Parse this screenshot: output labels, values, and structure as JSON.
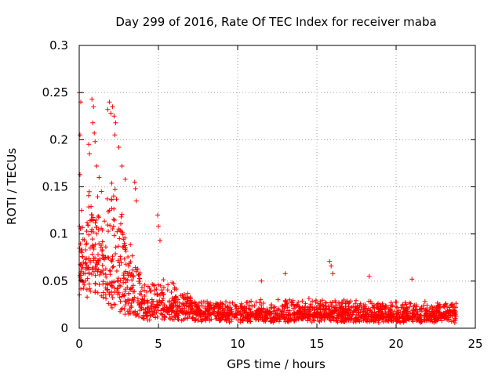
{
  "chart_data": {
    "type": "scatter",
    "title": "Day 299 of 2016, Rate Of TEC Index for receiver maba",
    "xlabel": "GPS time / hours",
    "ylabel": "ROTI / TECUs",
    "xlim": [
      0,
      25
    ],
    "ylim": [
      0,
      0.3
    ],
    "xticks": [
      0,
      5,
      10,
      15,
      20,
      25
    ],
    "yticks": [
      0,
      0.05,
      0.1,
      0.15,
      0.2,
      0.25,
      0.3
    ],
    "grid": true,
    "marker": "plus",
    "marker_color": "#ff0000",
    "series": [
      {
        "name": "ROTI",
        "envelope": [
          {
            "x": 0.0,
            "base": 0.08,
            "spread": 0.05
          },
          {
            "x": 0.5,
            "base": 0.09,
            "spread": 0.07
          },
          {
            "x": 1.0,
            "base": 0.08,
            "spread": 0.08
          },
          {
            "x": 1.5,
            "base": 0.06,
            "spread": 0.08
          },
          {
            "x": 2.0,
            "base": 0.05,
            "spread": 0.12
          },
          {
            "x": 2.5,
            "base": 0.04,
            "spread": 0.12
          },
          {
            "x": 3.0,
            "base": 0.03,
            "spread": 0.07
          },
          {
            "x": 3.5,
            "base": 0.025,
            "spread": 0.06
          },
          {
            "x": 4.0,
            "base": 0.02,
            "spread": 0.03
          },
          {
            "x": 5.0,
            "base": 0.02,
            "spread": 0.035
          },
          {
            "x": 6.0,
            "base": 0.02,
            "spread": 0.03
          },
          {
            "x": 7.0,
            "base": 0.018,
            "spread": 0.018
          },
          {
            "x": 10.0,
            "base": 0.015,
            "spread": 0.015
          },
          {
            "x": 15.0,
            "base": 0.015,
            "spread": 0.018
          },
          {
            "x": 20.0,
            "base": 0.014,
            "spread": 0.016
          },
          {
            "x": 23.8,
            "base": 0.014,
            "spread": 0.016
          }
        ],
        "spikes": [
          {
            "x": 0.0,
            "y": 0.25
          },
          {
            "x": 0.1,
            "y": 0.24
          },
          {
            "x": 0.05,
            "y": 0.205
          },
          {
            "x": 0.05,
            "y": 0.163
          },
          {
            "x": 0.15,
            "y": 0.125
          },
          {
            "x": 0.6,
            "y": 0.195
          },
          {
            "x": 0.65,
            "y": 0.185
          },
          {
            "x": 0.8,
            "y": 0.243
          },
          {
            "x": 0.9,
            "y": 0.235
          },
          {
            "x": 0.85,
            "y": 0.218
          },
          {
            "x": 0.95,
            "y": 0.207
          },
          {
            "x": 1.0,
            "y": 0.198
          },
          {
            "x": 1.1,
            "y": 0.172
          },
          {
            "x": 1.25,
            "y": 0.16
          },
          {
            "x": 1.4,
            "y": 0.145
          },
          {
            "x": 1.8,
            "y": 0.232
          },
          {
            "x": 1.9,
            "y": 0.24
          },
          {
            "x": 2.0,
            "y": 0.228
          },
          {
            "x": 2.1,
            "y": 0.235
          },
          {
            "x": 2.2,
            "y": 0.225
          },
          {
            "x": 2.3,
            "y": 0.218
          },
          {
            "x": 2.25,
            "y": 0.205
          },
          {
            "x": 2.5,
            "y": 0.192
          },
          {
            "x": 2.7,
            "y": 0.172
          },
          {
            "x": 2.9,
            "y": 0.158
          },
          {
            "x": 3.5,
            "y": 0.155
          },
          {
            "x": 3.55,
            "y": 0.148
          },
          {
            "x": 3.6,
            "y": 0.135
          },
          {
            "x": 4.95,
            "y": 0.12
          },
          {
            "x": 5.0,
            "y": 0.108
          },
          {
            "x": 5.1,
            "y": 0.093
          },
          {
            "x": 15.8,
            "y": 0.071
          },
          {
            "x": 15.9,
            "y": 0.066
          },
          {
            "x": 16.0,
            "y": 0.058
          },
          {
            "x": 13.0,
            "y": 0.058
          },
          {
            "x": 18.3,
            "y": 0.055
          },
          {
            "x": 21.0,
            "y": 0.052
          },
          {
            "x": 11.5,
            "y": 0.05
          },
          {
            "x": 0.5,
            "y": 0.033
          },
          {
            "x": 0.4,
            "y": 0.05
          }
        ]
      }
    ]
  }
}
